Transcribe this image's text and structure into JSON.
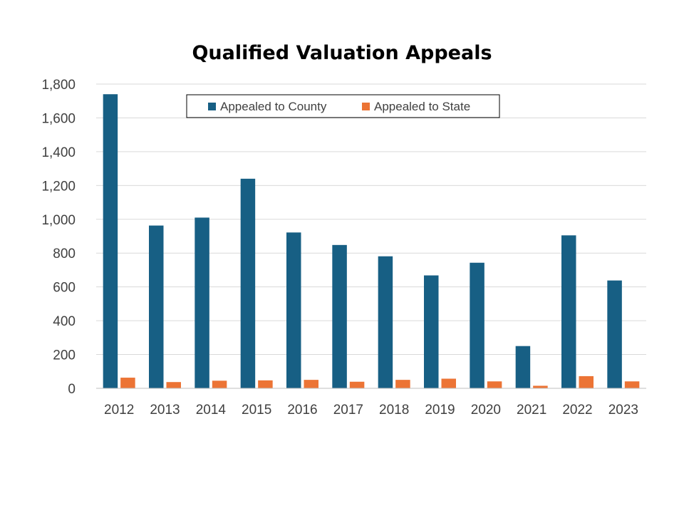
{
  "colors": {
    "county": "#175f84",
    "state": "#ec7435"
  },
  "chart_data": {
    "type": "bar",
    "title": "Qualified Valuation Appeals",
    "xlabel": "",
    "ylabel": "",
    "ylim": [
      0,
      1800
    ],
    "yticks": [
      "0",
      "200",
      "400",
      "600",
      "800",
      "1,000",
      "1,200",
      "1,400",
      "1,600",
      "1,800"
    ],
    "grid": true,
    "legend_position": "top",
    "categories": [
      "2012",
      "2013",
      "2014",
      "2015",
      "2016",
      "2017",
      "2018",
      "2019",
      "2020",
      "2021",
      "2022",
      "2023"
    ],
    "series": [
      {
        "name": "Appealed to County",
        "values": [
          1740,
          963,
          1010,
          1240,
          922,
          848,
          781,
          668,
          743,
          250,
          905,
          638
        ]
      },
      {
        "name": "Appealed to State",
        "values": [
          63,
          37,
          45,
          47,
          50,
          39,
          50,
          57,
          41,
          15,
          72,
          41
        ]
      }
    ]
  }
}
